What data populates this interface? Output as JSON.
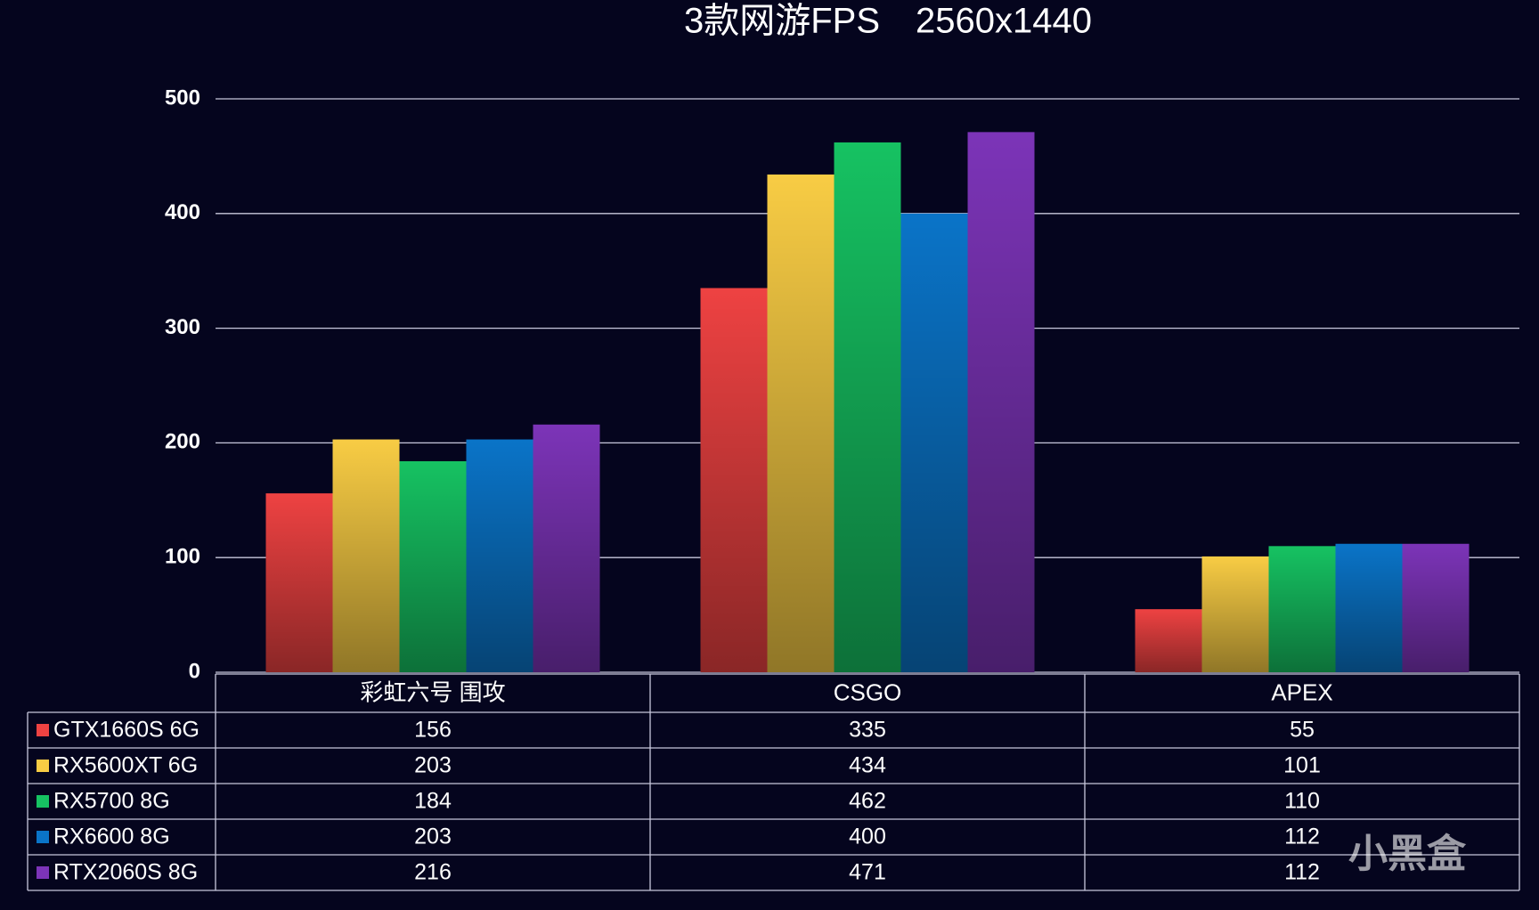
{
  "chart_data": {
    "type": "bar",
    "title": "3款网游FPS　2560x1440",
    "categories": [
      "彩虹六号 围攻",
      "CSGO",
      "APEX"
    ],
    "series": [
      {
        "name": "GTX1660S 6G",
        "color": "#ee4242",
        "values": [
          156,
          335,
          55
        ]
      },
      {
        "name": "RX5600XT 6G",
        "color": "#f8cc44",
        "values": [
          203,
          434,
          101
        ]
      },
      {
        "name": "RX5700 8G",
        "color": "#16c262",
        "values": [
          184,
          462,
          110
        ]
      },
      {
        "name": "RX6600 8G",
        "color": "#0a74c8",
        "values": [
          203,
          400,
          112
        ]
      },
      {
        "name": "RTX2060S 8G",
        "color": "#7c34b8",
        "values": [
          216,
          471,
          112
        ]
      }
    ],
    "ylim": [
      0,
      500
    ],
    "yticks": [
      0,
      100,
      200,
      300,
      400,
      500
    ],
    "grid": true,
    "watermark": "小黑盒"
  }
}
